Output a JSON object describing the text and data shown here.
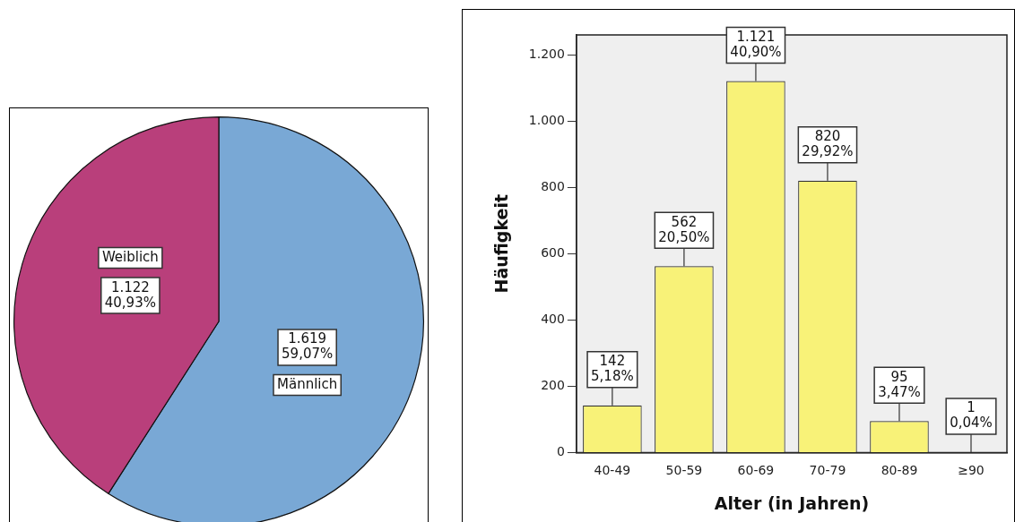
{
  "chart_data": [
    {
      "type": "pie",
      "categories": [
        "Männlich",
        "Weiblich"
      ],
      "values": [
        1619,
        1122
      ],
      "colors": [
        "#79a8d5",
        "#b93f7b"
      ],
      "value_labels": [
        "1.619\n59,07%",
        "1.122\n40,93%"
      ],
      "legend": false
    },
    {
      "type": "bar",
      "categories": [
        "40-49",
        "50-59",
        "60-69",
        "70-79",
        "80-89",
        "≥90"
      ],
      "values": [
        142,
        562,
        1121,
        820,
        95,
        1
      ],
      "color": "#f8f278",
      "value_labels": [
        "142\n5,18%",
        "562\n20,50%",
        "1.121\n40,90%",
        "820\n29,92%",
        "95\n3,47%",
        "1\n0,04%"
      ],
      "xlabel": "Alter (in Jahren)",
      "ylabel": "Häufigkeit",
      "ylim": [
        0,
        1260
      ],
      "yticks": [
        0,
        200,
        400,
        600,
        800,
        {
          "value": 1000,
          "label": "1.000"
        },
        {
          "value": 1200,
          "label": "1.200"
        }
      ],
      "grid": false,
      "legend": false
    }
  ]
}
